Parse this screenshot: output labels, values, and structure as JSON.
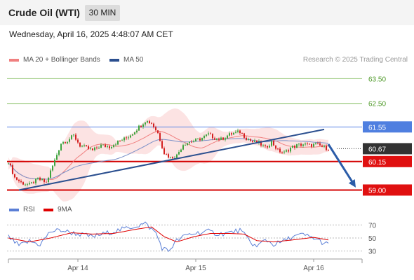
{
  "header": {
    "title": "Crude Oil (WTI)",
    "timeframe": "30 MIN"
  },
  "datetime": "Wednesday, April 16, 2025 4:48:07 AM CET",
  "legend": {
    "items": [
      {
        "label": "MA 20 + Bollinger Bands",
        "color": "#f08080"
      },
      {
        "label": "MA 50",
        "color": "#2b4f8f"
      }
    ]
  },
  "credit": "Research © 2025 Trading Central",
  "rsi_legend": {
    "items": [
      {
        "label": "RSI",
        "color": "#5b7fd6"
      },
      {
        "label": "9MA",
        "color": "#e00000"
      }
    ]
  },
  "chart_data": {
    "type": "candlestick",
    "y_range": [
      58.9,
      63.85
    ],
    "price_labels": [
      {
        "value": 63.5,
        "label": "63.50",
        "style": "green"
      },
      {
        "value": 62.5,
        "label": "62.50",
        "style": "green"
      },
      {
        "value": 61.55,
        "label": "61.55",
        "style": "blue"
      },
      {
        "value": 60.67,
        "label": "60.67",
        "style": "dark"
      },
      {
        "value": 60.15,
        "label": "60.15",
        "style": "red"
      },
      {
        "value": 59.0,
        "label": "59.00",
        "style": "red"
      }
    ],
    "trendline": {
      "from": {
        "bar": 5,
        "price": 59.0
      },
      "to": {
        "bar": 150,
        "price": 61.45
      }
    },
    "forecast_arrow": {
      "from": {
        "bar": 152,
        "price": 60.85
      },
      "to": {
        "bar": 165,
        "price": 59.1
      }
    },
    "x_tick_labels": [
      {
        "bar": 33,
        "label": "Apr 14"
      },
      {
        "bar": 89,
        "label": "Apr 15"
      },
      {
        "bar": 145,
        "label": "Apr 16"
      }
    ],
    "price_path": [
      [
        0,
        60.15
      ],
      [
        3,
        59.5
      ],
      [
        6,
        59.3
      ],
      [
        10,
        59.2
      ],
      [
        14,
        59.45
      ],
      [
        18,
        59.3
      ],
      [
        22,
        60.2
      ],
      [
        25,
        60.9
      ],
      [
        28,
        61.0
      ],
      [
        31,
        61.2
      ],
      [
        34,
        60.8
      ],
      [
        37,
        60.7
      ],
      [
        40,
        60.6
      ],
      [
        44,
        60.8
      ],
      [
        48,
        60.75
      ],
      [
        52,
        60.95
      ],
      [
        56,
        61.1
      ],
      [
        59,
        61.3
      ],
      [
        62,
        61.55
      ],
      [
        65,
        61.8
      ],
      [
        68,
        61.7
      ],
      [
        71,
        61.3
      ],
      [
        74,
        60.5
      ],
      [
        77,
        60.3
      ],
      [
        80,
        60.4
      ],
      [
        83,
        60.85
      ],
      [
        86,
        60.95
      ],
      [
        89,
        61.0
      ],
      [
        92,
        61.1
      ],
      [
        95,
        61.25
      ],
      [
        98,
        61.1
      ],
      [
        101,
        61.05
      ],
      [
        104,
        61.2
      ],
      [
        107,
        61.3
      ],
      [
        110,
        61.35
      ],
      [
        113,
        61.1
      ],
      [
        116,
        60.95
      ],
      [
        119,
        60.9
      ],
      [
        122,
        60.7
      ],
      [
        125,
        60.95
      ],
      [
        128,
        60.6
      ],
      [
        131,
        60.5
      ],
      [
        134,
        60.7
      ],
      [
        137,
        60.8
      ],
      [
        140,
        60.85
      ],
      [
        143,
        60.8
      ],
      [
        146,
        60.85
      ],
      [
        149,
        60.75
      ],
      [
        152,
        60.67
      ]
    ],
    "rsi_axis": {
      "range": [
        20,
        80
      ],
      "ticks": [
        70,
        50,
        30
      ]
    },
    "rsi_path": [
      [
        0,
        52
      ],
      [
        5,
        38
      ],
      [
        10,
        45
      ],
      [
        15,
        40
      ],
      [
        20,
        60
      ],
      [
        25,
        62
      ],
      [
        30,
        58
      ],
      [
        35,
        55
      ],
      [
        40,
        52
      ],
      [
        45,
        56
      ],
      [
        50,
        60
      ],
      [
        55,
        64
      ],
      [
        60,
        68
      ],
      [
        65,
        72
      ],
      [
        70,
        58
      ],
      [
        73,
        35
      ],
      [
        76,
        30
      ],
      [
        80,
        46
      ],
      [
        85,
        55
      ],
      [
        90,
        58
      ],
      [
        95,
        60
      ],
      [
        100,
        56
      ],
      [
        105,
        58
      ],
      [
        110,
        62
      ],
      [
        115,
        44
      ],
      [
        118,
        36
      ],
      [
        122,
        48
      ],
      [
        126,
        40
      ],
      [
        130,
        44
      ],
      [
        135,
        52
      ],
      [
        140,
        55
      ],
      [
        145,
        50
      ],
      [
        150,
        42
      ],
      [
        152,
        40
      ]
    ],
    "rsi_ma_path": [
      [
        0,
        50
      ],
      [
        10,
        44
      ],
      [
        20,
        50
      ],
      [
        30,
        58
      ],
      [
        40,
        56
      ],
      [
        50,
        57
      ],
      [
        60,
        63
      ],
      [
        68,
        67
      ],
      [
        74,
        52
      ],
      [
        80,
        44
      ],
      [
        88,
        52
      ],
      [
        96,
        57
      ],
      [
        105,
        57
      ],
      [
        112,
        56
      ],
      [
        118,
        46
      ],
      [
        126,
        44
      ],
      [
        135,
        47
      ],
      [
        145,
        51
      ],
      [
        152,
        47
      ]
    ]
  }
}
